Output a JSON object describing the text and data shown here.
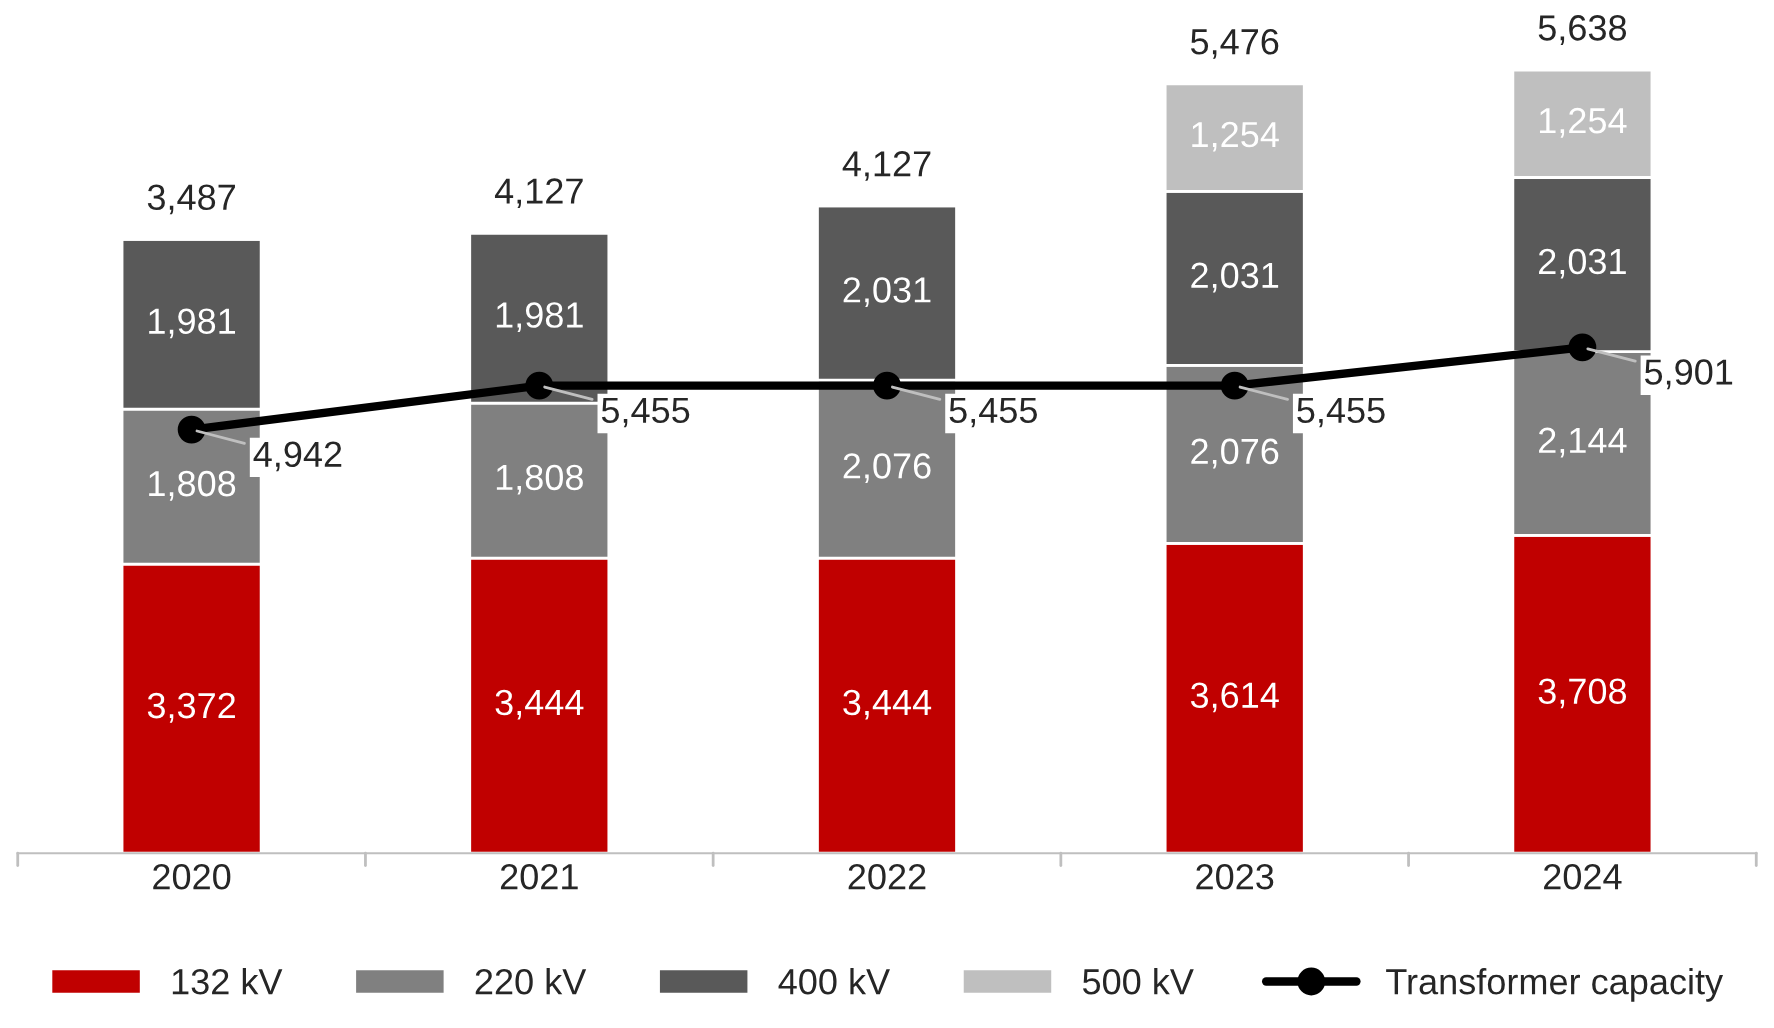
{
  "chart_data": {
    "type": "bar",
    "stacked": true,
    "categories": [
      "2020",
      "2021",
      "2022",
      "2023",
      "2024"
    ],
    "series": [
      {
        "name": "132 kV",
        "color": "#c00000",
        "values": [
          3372,
          3444,
          3444,
          3614,
          3708
        ],
        "value_labels": [
          "3,372",
          "3,444",
          "3,444",
          "3,614",
          "3,708"
        ]
      },
      {
        "name": "220 kV",
        "color": "#808080",
        "values": [
          1808,
          1808,
          2076,
          2076,
          2144
        ],
        "value_labels": [
          "1,808",
          "1,808",
          "2,076",
          "2,076",
          "2,144"
        ]
      },
      {
        "name": "400 kV",
        "color": "#595959",
        "values": [
          1981,
          1981,
          2031,
          2031,
          2031
        ],
        "value_labels": [
          "1,981",
          "1,981",
          "2,031",
          "2,031",
          "2,031"
        ]
      },
      {
        "name": "500 kV",
        "color": "#bfbfbf",
        "values": [
          null,
          null,
          null,
          1254,
          1254
        ],
        "value_labels": [
          null,
          null,
          null,
          "1,254",
          "1,254"
        ]
      },
      {
        "name": "Transformer capacity",
        "type": "line",
        "color": "#000000",
        "marker": "circle",
        "line_style": "solid",
        "values": [
          4942,
          5455,
          5455,
          5455,
          5901
        ],
        "value_labels": [
          "4,942",
          "5,455",
          "5,455",
          "5,455",
          "5,901"
        ]
      }
    ],
    "annotations": [
      {
        "text": "3,487",
        "x": "2020",
        "y": 7161
      },
      {
        "text": "4,127",
        "x": "2021",
        "y": 7233
      },
      {
        "text": "4,127",
        "x": "2022",
        "y": 7551
      },
      {
        "text": "5,476",
        "x": "2023",
        "y": 8975
      },
      {
        "text": "5,638",
        "x": "2024",
        "y": 9137
      }
    ],
    "grid": false,
    "legend": "bottom",
    "tick_labels": "x"
  }
}
